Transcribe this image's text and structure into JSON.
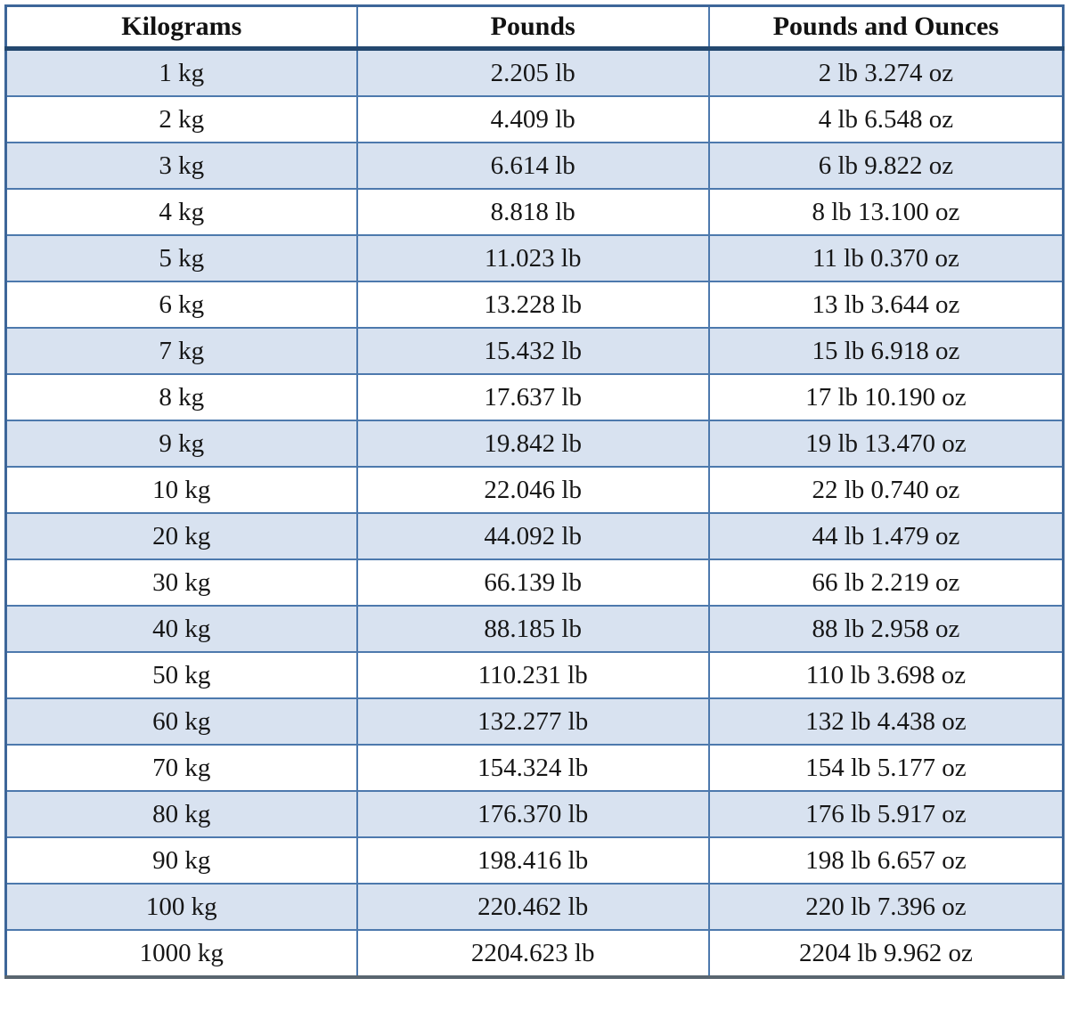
{
  "table": {
    "columns": [
      "Kilograms",
      "Pounds",
      "Pounds and Ounces"
    ],
    "rows": [
      [
        "1 kg",
        "2.205 lb",
        "2 lb 3.274 oz"
      ],
      [
        "2 kg",
        "4.409 lb",
        "4 lb 6.548 oz"
      ],
      [
        "3 kg",
        "6.614 lb",
        "6 lb 9.822 oz"
      ],
      [
        "4 kg",
        "8.818 lb",
        "8 lb 13.100 oz"
      ],
      [
        "5 kg",
        "11.023 lb",
        "11 lb 0.370 oz"
      ],
      [
        "6 kg",
        "13.228 lb",
        "13 lb 3.644 oz"
      ],
      [
        "7 kg",
        "15.432 lb",
        "15 lb 6.918 oz"
      ],
      [
        "8 kg",
        "17.637 lb",
        "17 lb 10.190 oz"
      ],
      [
        "9 kg",
        "19.842 lb",
        "19 lb 13.470 oz"
      ],
      [
        "10 kg",
        "22.046 lb",
        "22 lb 0.740 oz"
      ],
      [
        "20 kg",
        "44.092 lb",
        "44 lb 1.479 oz"
      ],
      [
        "30 kg",
        "66.139 lb",
        "66 lb 2.219 oz"
      ],
      [
        "40 kg",
        "88.185 lb",
        "88 lb 2.958 oz"
      ],
      [
        "50 kg",
        "110.231 lb",
        "110 lb 3.698 oz"
      ],
      [
        "60 kg",
        "132.277 lb",
        "132 lb 4.438 oz"
      ],
      [
        "70 kg",
        "154.324 lb",
        "154 lb 5.177 oz"
      ],
      [
        "80 kg",
        "176.370 lb",
        "176 lb 5.917 oz"
      ],
      [
        "90 kg",
        "198.416 lb",
        "198 lb 6.657 oz"
      ],
      [
        "100 kg",
        "220.462 lb",
        "220 lb 7.396 oz"
      ],
      [
        "1000 kg",
        "2204.623 lb",
        "2204 lb 9.962 oz"
      ]
    ]
  },
  "colors": {
    "row_shaded": "#d8e2f0",
    "row_plain": "#ffffff",
    "grid_border": "#4d79ad",
    "header_rule": "#24486f",
    "outer_border": "#3d6699",
    "text": "#161616"
  }
}
